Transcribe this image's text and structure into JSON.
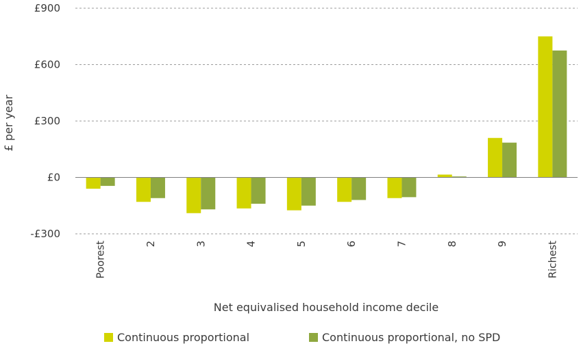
{
  "chart_data": {
    "type": "bar",
    "title": "",
    "xlabel": "Net equivalised household income decile",
    "ylabel": "£ per year",
    "ylim": [
      -300,
      900
    ],
    "yticks": [
      {
        "value": 900,
        "label": "£900"
      },
      {
        "value": 600,
        "label": "£600"
      },
      {
        "value": 300,
        "label": "£300"
      },
      {
        "value": 0,
        "label": "£0"
      },
      {
        "value": -300,
        "label": "-£300"
      }
    ],
    "grid": true,
    "legend_position": "bottom",
    "categories": [
      "Poorest",
      "2",
      "3",
      "4",
      "5",
      "6",
      "7",
      "8",
      "9",
      "Richest"
    ],
    "series": [
      {
        "name": "Continuous proportional",
        "color": "#d2d400",
        "values": [
          -60,
          -130,
          -190,
          -165,
          -175,
          -130,
          -110,
          15,
          210,
          750
        ]
      },
      {
        "name": "Continuous proportional, no SPD",
        "color": "#8fa83f",
        "values": [
          -45,
          -110,
          -170,
          -140,
          -150,
          -120,
          -105,
          5,
          185,
          675
        ]
      }
    ]
  }
}
